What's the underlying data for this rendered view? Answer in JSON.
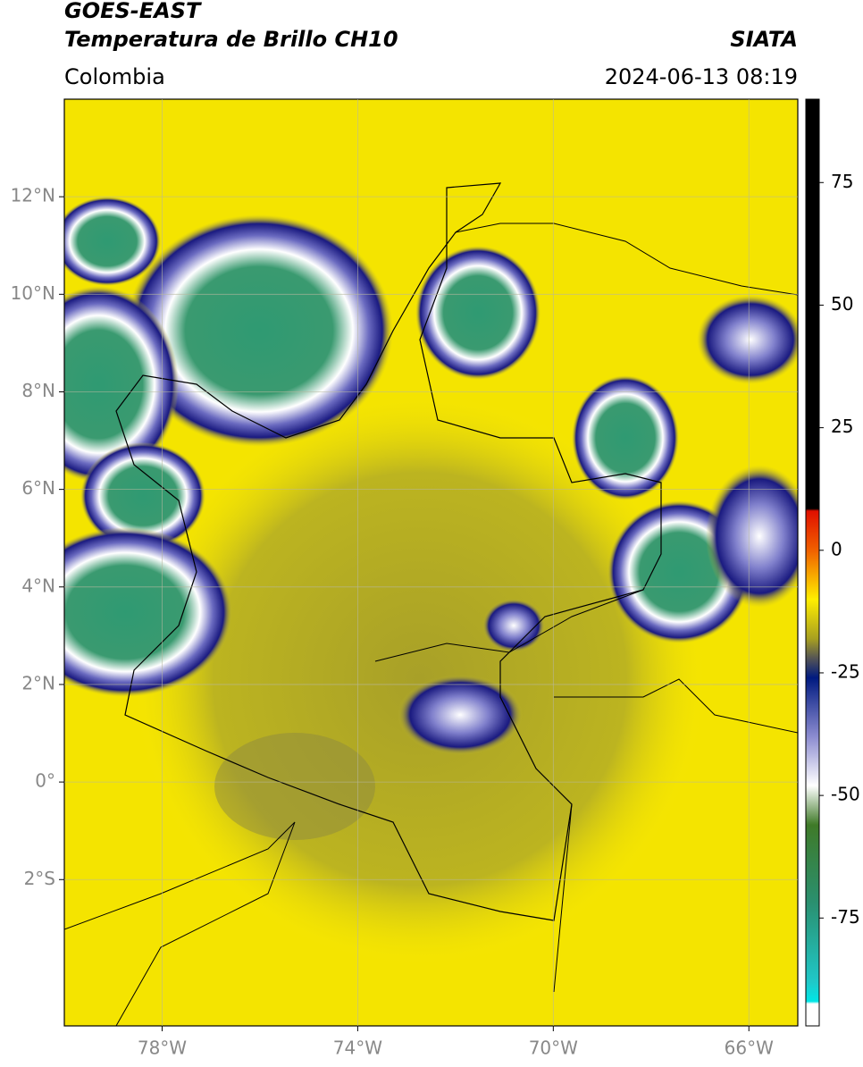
{
  "header": {
    "satellite": "GOES-EAST",
    "product": "Temperatura de Brillo CH10",
    "source": "SIATA",
    "region": "Colombia",
    "datetime": "2024-06-13 08:19"
  },
  "map": {
    "xlim": [
      -80,
      -65
    ],
    "ylim": [
      -5,
      14
    ],
    "xticks": [
      {
        "value": -78,
        "label": "78°W"
      },
      {
        "value": -74,
        "label": "74°W"
      },
      {
        "value": -70,
        "label": "70°W"
      },
      {
        "value": -66,
        "label": "66°W"
      }
    ],
    "yticks": [
      {
        "value": 12,
        "label": "12°N"
      },
      {
        "value": 10,
        "label": "10°N"
      },
      {
        "value": 8,
        "label": "8°N"
      },
      {
        "value": 6,
        "label": "6°N"
      },
      {
        "value": 4,
        "label": "4°N"
      },
      {
        "value": 2,
        "label": "2°N"
      },
      {
        "value": 0,
        "label": "0°"
      },
      {
        "value": -2,
        "label": "2°S"
      }
    ],
    "grid": true
  },
  "colorbar": {
    "lim": [
      -97,
      92
    ],
    "ticks": [
      75,
      50,
      25,
      0,
      -25,
      -50,
      -75
    ],
    "colormap": [
      {
        "value": 92,
        "color": "#000000"
      },
      {
        "value": 8.5,
        "color": "#000000"
      },
      {
        "value": 8,
        "color": "#e01000"
      },
      {
        "value": 0,
        "color": "#f06000"
      },
      {
        "value": -10,
        "color": "#ffee00"
      },
      {
        "value": -18,
        "color": "#a8a020"
      },
      {
        "value": -22,
        "color": "#555555"
      },
      {
        "value": -26,
        "color": "#001a80"
      },
      {
        "value": -38,
        "color": "#8c8cd0"
      },
      {
        "value": -48,
        "color": "#ffffff"
      },
      {
        "value": -56,
        "color": "#3f7a28"
      },
      {
        "value": -72,
        "color": "#2a9070"
      },
      {
        "value": -88,
        "color": "#20c8c8"
      },
      {
        "value": -92,
        "color": "#00e6e6"
      },
      {
        "value": -92.5,
        "color": "#ffffff"
      },
      {
        "value": -97,
        "color": "#ffffff"
      }
    ]
  }
}
